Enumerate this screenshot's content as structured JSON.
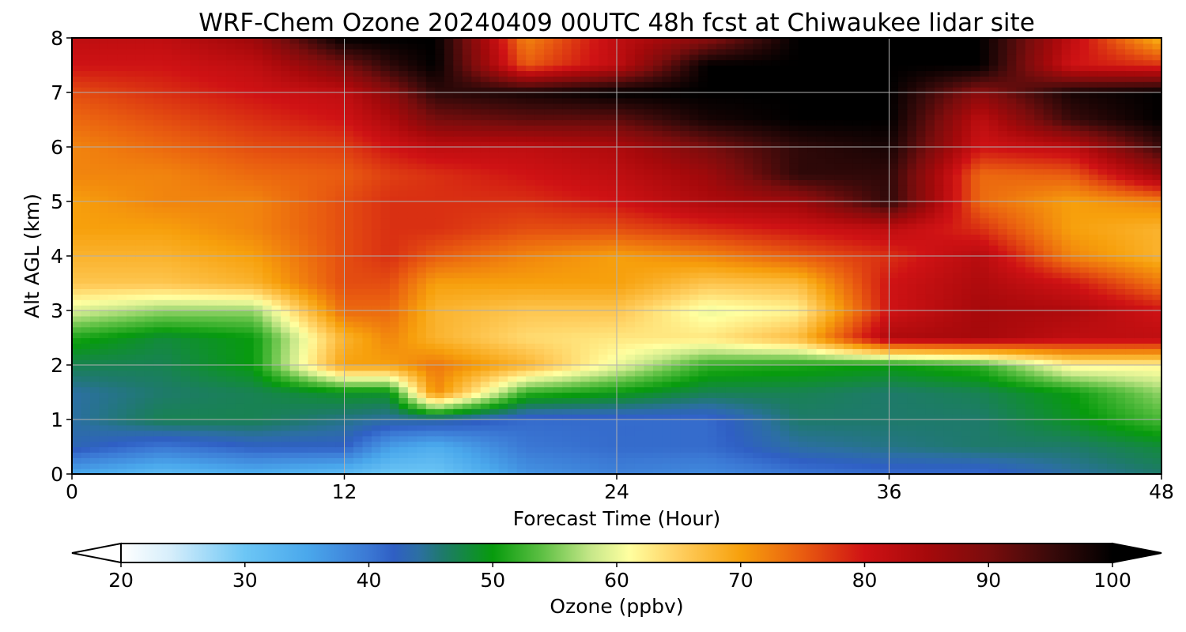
{
  "chart_data": {
    "type": "heatmap",
    "title": "WRF-Chem Ozone  20240409 00UTC 48h fcst at Chiwaukee lidar site",
    "xlabel": "Forecast Time (Hour)",
    "ylabel": "Alt AGL (km)",
    "xlim": [
      0,
      48
    ],
    "ylim": [
      0,
      8
    ],
    "xticks": [
      0,
      12,
      24,
      36,
      48
    ],
    "yticks": [
      0,
      1,
      2,
      3,
      4,
      5,
      6,
      7,
      8
    ],
    "grid": true,
    "x": [
      0,
      4,
      8,
      12,
      14,
      16,
      20,
      24,
      28,
      32,
      36,
      40,
      44,
      48
    ],
    "y": [
      0,
      0.5,
      1,
      1.5,
      2,
      2.5,
      3,
      3.5,
      4,
      4.5,
      5,
      5.5,
      6,
      6.5,
      7,
      7.5,
      8
    ],
    "z": [
      [
        35,
        32,
        34,
        32,
        30,
        30,
        37,
        39,
        38,
        40,
        41,
        41,
        44,
        46
      ],
      [
        43,
        40,
        42,
        42,
        36,
        34,
        40,
        41,
        41,
        44,
        45,
        46,
        46,
        48
      ],
      [
        44,
        47,
        47,
        45,
        44,
        44,
        41,
        41,
        41,
        46,
        46,
        46,
        49,
        53
      ],
      [
        44,
        46,
        47,
        49,
        49,
        72,
        52,
        50,
        47,
        47,
        46,
        47,
        50,
        56
      ],
      [
        47,
        47,
        50,
        70,
        70,
        73,
        68,
        60,
        52,
        51,
        50,
        52,
        62,
        62
      ],
      [
        51,
        48,
        50,
        68,
        72,
        68,
        64,
        63,
        63,
        67,
        84,
        85,
        82,
        82
      ],
      [
        59,
        56,
        56,
        74,
        74,
        68,
        66,
        66,
        60,
        62,
        80,
        85,
        84,
        80
      ],
      [
        66,
        66,
        68,
        76,
        76,
        70,
        70,
        70,
        66,
        67,
        80,
        84,
        80,
        73
      ],
      [
        68,
        68,
        70,
        76,
        78,
        75,
        72,
        70,
        72,
        75,
        78,
        83,
        72,
        68
      ],
      [
        70,
        70,
        72,
        76,
        78,
        78,
        76,
        76,
        78,
        80,
        82,
        78,
        70,
        68
      ],
      [
        70,
        72,
        72,
        76,
        78,
        78,
        78,
        80,
        84,
        86,
        96,
        74,
        70,
        72
      ],
      [
        72,
        72,
        74,
        75,
        77,
        78,
        80,
        82,
        86,
        96,
        96,
        74,
        75,
        86
      ],
      [
        72,
        74,
        76,
        77,
        80,
        82,
        82,
        84,
        90,
        96,
        98,
        80,
        82,
        95
      ],
      [
        74,
        76,
        78,
        80,
        84,
        90,
        92,
        92,
        98,
        100,
        100,
        82,
        95,
        100
      ],
      [
        76,
        78,
        80,
        82,
        88,
        96,
        98,
        100,
        100,
        100,
        100,
        88,
        98,
        100
      ],
      [
        80,
        80,
        82,
        90,
        96,
        100,
        75,
        82,
        100,
        100,
        100,
        100,
        80,
        78
      ],
      [
        82,
        82,
        86,
        100,
        100,
        100,
        72,
        82,
        88,
        100,
        100,
        100,
        82,
        68
      ]
    ],
    "colorbar": {
      "label": "Ozone  (ppbv)",
      "min": 20,
      "max": 100,
      "ticks": [
        20,
        30,
        40,
        50,
        60,
        70,
        80,
        90,
        100
      ],
      "extend": "both",
      "stops": [
        {
          "v": 20,
          "c": "#ffffff"
        },
        {
          "v": 24,
          "c": "#d6eefb"
        },
        {
          "v": 30,
          "c": "#6cc6f5"
        },
        {
          "v": 35,
          "c": "#4aa8ec"
        },
        {
          "v": 40,
          "c": "#3b78d4"
        },
        {
          "v": 42,
          "c": "#2f5fc4"
        },
        {
          "v": 44,
          "c": "#2c6fa3"
        },
        {
          "v": 46,
          "c": "#1e7a6a"
        },
        {
          "v": 50,
          "c": "#079b0d"
        },
        {
          "v": 54,
          "c": "#5ec044"
        },
        {
          "v": 58,
          "c": "#c8e88a"
        },
        {
          "v": 61,
          "c": "#ffffa0"
        },
        {
          "v": 65,
          "c": "#ffcf60"
        },
        {
          "v": 70,
          "c": "#f7a00c"
        },
        {
          "v": 75,
          "c": "#e95c10"
        },
        {
          "v": 80,
          "c": "#cf1214"
        },
        {
          "v": 85,
          "c": "#a6090b"
        },
        {
          "v": 90,
          "c": "#7a0d0d"
        },
        {
          "v": 95,
          "c": "#3a0a0a"
        },
        {
          "v": 100,
          "c": "#000000"
        }
      ]
    }
  }
}
